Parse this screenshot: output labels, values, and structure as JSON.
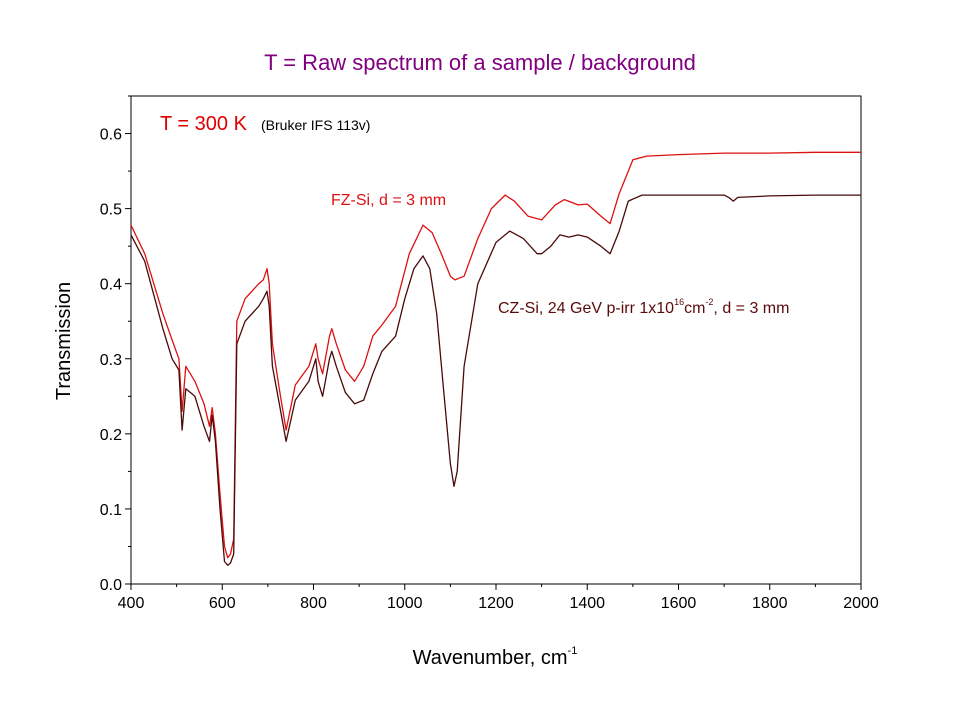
{
  "slide": {
    "title": "T = Raw spectrum of a sample / background"
  },
  "chart_data": {
    "type": "line",
    "xlabel": "Wavenumber, cm",
    "xlabel_sup": "-1",
    "ylabel": "Transmission",
    "xlim": [
      400,
      2000
    ],
    "ylim": [
      0,
      0.65
    ],
    "xticks": [
      "400",
      "600",
      "800",
      "1000",
      "1200",
      "1400",
      "1600",
      "1800",
      "2000"
    ],
    "yticks": [
      "0.0",
      "0.1",
      "0.2",
      "0.3",
      "0.4",
      "0.5",
      "0.6"
    ],
    "grid": false,
    "annotations": {
      "temperature_main": "T = 300 K",
      "temperature_sub": "(Bruker IFS 113v)",
      "fz": "FZ-Si,  d = 3 mm",
      "cz_a": "CZ-Si, 24 GeV p-irr 1x10",
      "cz_sup1": "16",
      "cz_b": "cm",
      "cz_sup2": "-2",
      "cz_c": ",  d = 3 mm"
    },
    "series": [
      {
        "name": "FZ-Si,  d = 3 mm",
        "color": "#dd1111",
        "x": [
          400,
          430,
          470,
          490,
          505,
          512,
          520,
          540,
          560,
          572,
          578,
          585,
          595,
          605,
          612,
          618,
          625,
          632,
          650,
          680,
          690,
          698,
          703,
          710,
          725,
          740,
          760,
          790,
          800,
          805,
          810,
          820,
          835,
          840,
          850,
          870,
          890,
          910,
          930,
          950,
          980,
          1010,
          1040,
          1060,
          1080,
          1100,
          1110,
          1130,
          1160,
          1190,
          1220,
          1240,
          1270,
          1300,
          1330,
          1350,
          1380,
          1400,
          1430,
          1450,
          1470,
          1500,
          1530,
          1600,
          1700,
          1710,
          1720,
          1730,
          1800,
          1900,
          2000
        ],
        "y": [
          0.478,
          0.44,
          0.36,
          0.325,
          0.3,
          0.23,
          0.29,
          0.27,
          0.24,
          0.21,
          0.235,
          0.2,
          0.12,
          0.05,
          0.035,
          0.04,
          0.06,
          0.35,
          0.38,
          0.4,
          0.405,
          0.42,
          0.4,
          0.32,
          0.26,
          0.205,
          0.265,
          0.29,
          0.31,
          0.32,
          0.3,
          0.28,
          0.33,
          0.34,
          0.32,
          0.285,
          0.27,
          0.29,
          0.33,
          0.345,
          0.37,
          0.44,
          0.478,
          0.468,
          0.44,
          0.41,
          0.405,
          0.41,
          0.46,
          0.5,
          0.518,
          0.51,
          0.49,
          0.485,
          0.505,
          0.512,
          0.505,
          0.506,
          0.49,
          0.48,
          0.52,
          0.565,
          0.57,
          0.572,
          0.574,
          0.574,
          0.574,
          0.574,
          0.574,
          0.575,
          0.575
        ]
      },
      {
        "name": "CZ-Si, 24 GeV p-irr 1x10^16cm^-2,  d = 3 mm",
        "color": "#4a0a0a",
        "x": [
          400,
          430,
          470,
          490,
          505,
          512,
          520,
          540,
          560,
          572,
          578,
          585,
          595,
          605,
          612,
          618,
          625,
          632,
          650,
          680,
          690,
          698,
          703,
          710,
          725,
          740,
          760,
          790,
          800,
          805,
          810,
          820,
          835,
          840,
          850,
          870,
          890,
          910,
          930,
          950,
          980,
          1000,
          1020,
          1040,
          1055,
          1070,
          1085,
          1100,
          1108,
          1115,
          1130,
          1160,
          1200,
          1230,
          1260,
          1290,
          1300,
          1320,
          1340,
          1360,
          1380,
          1400,
          1430,
          1450,
          1470,
          1490,
          1520,
          1600,
          1700,
          1710,
          1720,
          1730,
          1800,
          1900,
          2000
        ],
        "y": [
          0.465,
          0.43,
          0.34,
          0.3,
          0.285,
          0.205,
          0.26,
          0.25,
          0.21,
          0.19,
          0.225,
          0.19,
          0.1,
          0.03,
          0.025,
          0.028,
          0.04,
          0.32,
          0.35,
          0.37,
          0.38,
          0.39,
          0.37,
          0.29,
          0.24,
          0.19,
          0.245,
          0.27,
          0.29,
          0.3,
          0.27,
          0.25,
          0.3,
          0.31,
          0.29,
          0.255,
          0.24,
          0.245,
          0.28,
          0.31,
          0.33,
          0.38,
          0.42,
          0.437,
          0.42,
          0.36,
          0.26,
          0.16,
          0.13,
          0.15,
          0.29,
          0.4,
          0.455,
          0.47,
          0.46,
          0.44,
          0.44,
          0.45,
          0.465,
          0.462,
          0.465,
          0.462,
          0.45,
          0.44,
          0.47,
          0.51,
          0.518,
          0.518,
          0.518,
          0.515,
          0.51,
          0.515,
          0.517,
          0.518,
          0.518
        ]
      }
    ]
  }
}
